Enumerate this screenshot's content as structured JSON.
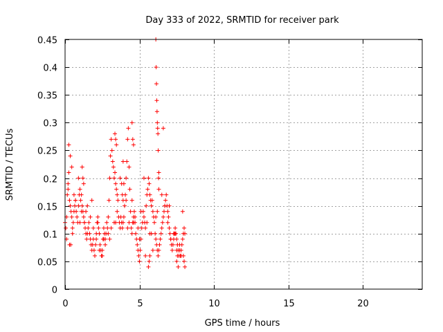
{
  "chart_data": {
    "type": "scatter",
    "title": "Day 333 of 2022, SRMTID for receiver park",
    "xlabel": "GPS time / hours",
    "ylabel": "SRMTID / TECUs",
    "xlim": [
      0,
      24
    ],
    "ylim": [
      0,
      0.45
    ],
    "x_ticks": [
      0,
      5,
      10,
      15,
      20
    ],
    "x_tick_labels": [
      "0",
      "5",
      "10",
      "15",
      "20"
    ],
    "y_ticks": [
      0,
      0.05,
      0.1,
      0.15,
      0.2,
      0.25,
      0.3,
      0.35,
      0.4,
      0.45
    ],
    "y_tick_labels": [
      "0",
      "0.05",
      "0.1",
      "0.15",
      "0.2",
      "0.25",
      "0.3",
      "0.35",
      "0.4",
      "0.45"
    ],
    "grid": true,
    "marker": "+",
    "marker_color": "#ff0000",
    "series": [
      {
        "name": "SRMTID",
        "x": [
          0.0,
          0.05,
          0.1,
          0.15,
          0.2,
          0.25,
          0.3,
          0.35,
          0.4,
          0.45,
          0.5,
          0.55,
          0.6,
          0.65,
          0.7,
          0.75,
          0.8,
          0.85,
          0.9,
          0.95,
          1.0,
          1.05,
          1.1,
          1.15,
          1.2,
          1.25,
          1.3,
          1.35,
          1.4,
          1.45,
          1.5,
          1.55,
          1.6,
          1.65,
          1.7,
          1.75,
          1.8,
          1.85,
          1.9,
          1.95,
          2.0,
          2.05,
          2.1,
          2.15,
          2.2,
          2.25,
          2.3,
          2.35,
          2.4,
          2.45,
          2.5,
          2.55,
          2.6,
          2.65,
          2.7,
          2.75,
          2.8,
          2.85,
          2.9,
          2.95,
          3.0,
          3.05,
          3.1,
          3.15,
          3.2,
          3.25,
          3.3,
          3.35,
          3.4,
          3.45,
          3.5,
          3.55,
          3.6,
          3.65,
          3.7,
          3.75,
          3.8,
          3.85,
          3.9,
          3.95,
          4.0,
          4.05,
          4.1,
          4.15,
          4.2,
          4.25,
          4.3,
          4.35,
          4.4,
          4.45,
          4.5,
          4.55,
          4.6,
          4.65,
          4.7,
          4.75,
          4.8,
          4.85,
          4.9,
          4.95,
          5.0,
          5.05,
          5.1,
          5.15,
          5.2,
          5.25,
          5.3,
          5.35,
          5.4,
          5.45,
          5.5,
          5.55,
          5.6,
          5.65,
          5.7,
          5.75,
          5.8,
          5.85,
          5.9,
          5.95,
          6.0,
          6.05,
          6.1,
          6.15,
          6.2,
          6.25,
          6.3,
          6.35,
          6.4,
          6.45,
          6.5,
          6.55,
          6.6,
          6.65,
          6.7,
          6.75,
          6.8,
          6.85,
          6.9,
          6.95,
          7.0,
          7.05,
          7.1,
          7.15,
          7.2,
          7.25,
          7.3,
          7.35,
          7.4,
          7.45,
          7.5,
          7.55,
          7.6,
          7.65,
          7.7,
          7.75,
          7.8,
          7.85,
          7.9,
          7.95,
          8.0,
          8.05,
          0.1,
          0.3,
          0.5,
          0.7,
          0.9,
          1.1,
          1.3,
          1.5,
          1.7,
          1.9,
          2.1,
          2.3,
          2.5,
          2.7,
          2.9,
          3.1,
          3.3,
          3.5,
          3.7,
          3.9,
          4.1,
          4.3,
          4.5,
          4.7,
          4.9,
          5.1,
          5.3,
          5.5,
          5.7,
          5.9,
          6.1,
          6.3,
          6.5,
          6.7,
          6.9,
          7.1,
          7.3,
          7.5,
          7.7,
          7.9,
          0.2,
          0.6,
          1.0,
          1.4,
          1.8,
          2.2,
          2.6,
          3.0,
          3.4,
          3.8,
          4.2,
          4.6,
          5.0,
          5.4,
          5.8,
          6.2,
          6.6,
          7.0,
          7.4,
          7.8,
          0.38,
          4.5,
          4.55,
          4.6,
          3.35,
          3.4,
          3.45,
          6.1,
          6.12,
          6.14,
          6.16,
          6.18,
          6.2,
          6.22,
          6.24,
          6.26,
          6.28,
          6.3,
          5.6,
          5.65,
          5.7,
          3.85,
          3.9,
          3.95,
          0.25,
          0.35,
          0.45,
          1.15,
          1.2,
          1.25,
          7.5,
          7.55,
          7.6,
          7.95,
          8.0,
          8.05
        ],
        "y": [
          0.12,
          0.11,
          0.13,
          0.17,
          0.19,
          0.21,
          0.16,
          0.15,
          0.14,
          0.13,
          0.11,
          0.12,
          0.14,
          0.15,
          0.16,
          0.14,
          0.13,
          0.12,
          0.15,
          0.17,
          0.18,
          0.16,
          0.17,
          0.15,
          0.14,
          0.13,
          0.12,
          0.11,
          0.1,
          0.09,
          0.1,
          0.11,
          0.12,
          0.1,
          0.09,
          0.08,
          0.07,
          0.08,
          0.09,
          0.07,
          0.06,
          0.08,
          0.1,
          0.12,
          0.13,
          0.11,
          0.1,
          0.08,
          0.07,
          0.06,
          0.07,
          0.09,
          0.11,
          0.1,
          0.09,
          0.1,
          0.12,
          0.11,
          0.13,
          0.16,
          0.2,
          0.24,
          0.27,
          0.25,
          0.23,
          0.22,
          0.2,
          0.21,
          0.19,
          0.18,
          0.17,
          0.16,
          0.13,
          0.12,
          0.11,
          0.13,
          0.12,
          0.11,
          0.12,
          0.13,
          0.15,
          0.17,
          0.2,
          0.23,
          0.27,
          0.29,
          0.22,
          0.18,
          0.14,
          0.11,
          0.1,
          0.12,
          0.13,
          0.14,
          0.12,
          0.1,
          0.09,
          0.08,
          0.07,
          0.06,
          0.05,
          0.07,
          0.09,
          0.11,
          0.12,
          0.14,
          0.13,
          0.12,
          0.11,
          0.15,
          0.17,
          0.18,
          0.2,
          0.19,
          0.17,
          0.16,
          0.15,
          0.16,
          0.14,
          0.13,
          0.12,
          0.1,
          0.09,
          0.08,
          0.07,
          0.06,
          0.07,
          0.08,
          0.09,
          0.1,
          0.11,
          0.12,
          0.13,
          0.14,
          0.15,
          0.16,
          0.17,
          0.15,
          0.14,
          0.13,
          0.11,
          0.1,
          0.09,
          0.08,
          0.07,
          0.08,
          0.09,
          0.1,
          0.11,
          0.1,
          0.09,
          0.08,
          0.07,
          0.06,
          0.07,
          0.06,
          0.07,
          0.08,
          0.09,
          0.1,
          0.11,
          0.1,
          0.09,
          0.08,
          0.1,
          0.16,
          0.2,
          0.14,
          0.12,
          0.15,
          0.13,
          0.11,
          0.09,
          0.07,
          0.06,
          0.08,
          0.1,
          0.11,
          0.12,
          0.14,
          0.2,
          0.23,
          0.16,
          0.12,
          0.16,
          0.13,
          0.11,
          0.14,
          0.2,
          0.12,
          0.1,
          0.07,
          0.13,
          0.21,
          0.17,
          0.15,
          0.12,
          0.09,
          0.1,
          0.07,
          0.08,
          0.14,
          0.18,
          0.17,
          0.12,
          0.14,
          0.16,
          0.12,
          0.09,
          0.09,
          0.12,
          0.19,
          0.11,
          0.12,
          0.09,
          0.06,
          0.1,
          0.14,
          0.29,
          0.15,
          0.1,
          0.06,
          0.08,
          0.3,
          0.27,
          0.26,
          0.28,
          0.27,
          0.26,
          0.45,
          0.4,
          0.37,
          0.34,
          0.32,
          0.3,
          0.29,
          0.28,
          0.25,
          0.2,
          0.18,
          0.04,
          0.05,
          0.06,
          0.17,
          0.16,
          0.19,
          0.26,
          0.24,
          0.22,
          0.22,
          0.2,
          0.19,
          0.05,
          0.06,
          0.04,
          0.06,
          0.05,
          0.04
        ]
      }
    ]
  }
}
